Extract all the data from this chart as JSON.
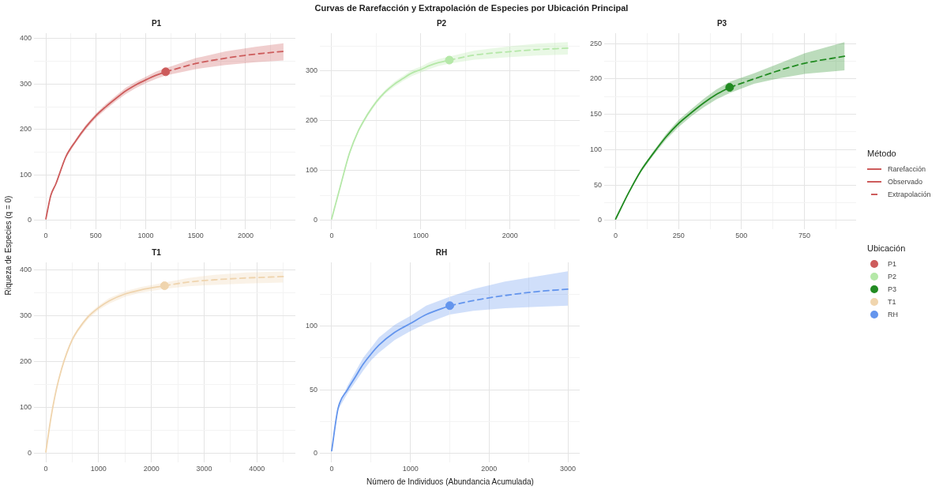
{
  "chart_data": [
    {
      "type": "line",
      "title": "P1",
      "legend": "right",
      "legend_title": "Método",
      "grid": true,
      "xlim": [
        -119,
        2499
      ],
      "xticks": [
        0,
        {
          "value": 250,
          "label": null
        },
        500,
        {
          "value": 750,
          "label": null
        },
        1000,
        {
          "value": 1250,
          "label": null
        },
        1500,
        {
          "value": 1750,
          "label": null
        },
        2000,
        {
          "value": 2250,
          "label": null
        }
      ],
      "ylim": [
        -20,
        412
      ],
      "yticks": [
        0,
        {
          "value": 50,
          "label": null
        },
        100,
        {
          "value": 150,
          "label": null
        },
        200,
        {
          "value": 250,
          "label": null
        },
        300,
        {
          "value": 350,
          "label": null
        },
        400
      ],
      "series": [
        {
          "name": "Rarefacción",
          "type": "line",
          "line_style": "solid",
          "color": "#cd5c5c",
          "x": [
            0,
            50,
            100,
            200,
            300,
            400,
            500,
            600,
            700,
            800,
            900,
            1000,
            1100,
            1200
          ],
          "values": [
            3,
            55,
            80,
            140,
            175,
            205,
            230,
            250,
            268,
            285,
            298,
            309,
            319,
            327
          ],
          "lower": [
            3,
            53,
            78,
            137,
            171,
            200,
            225,
            244,
            262,
            278,
            291,
            302,
            311,
            319
          ],
          "upper": [
            3,
            57,
            82,
            143,
            179,
            210,
            235,
            256,
            274,
            292,
            305,
            316,
            327,
            335
          ]
        },
        {
          "name": "Observado",
          "type": "scatter",
          "marker": "circle",
          "color": "#cd5c5c",
          "x": [
            1200
          ],
          "values": [
            327
          ]
        },
        {
          "name": "Extrapolación",
          "type": "line",
          "line_style": "dashed",
          "color": "#cd5c5c",
          "x": [
            1200,
            1500,
            1800,
            2100,
            2380
          ],
          "values": [
            327,
            345,
            357,
            366,
            372
          ],
          "lower": [
            319,
            333,
            342,
            348,
            352
          ],
          "upper": [
            335,
            357,
            372,
            382,
            390
          ]
        }
      ]
    },
    {
      "type": "line",
      "title": "P2",
      "grid": true,
      "xlim": [
        -132,
        2782
      ],
      "xticks": [
        0,
        {
          "value": 500,
          "label": null
        },
        1000,
        {
          "value": 1500,
          "label": null
        },
        2000,
        {
          "value": 2500,
          "label": null
        }
      ],
      "ylim": [
        -18,
        376
      ],
      "yticks": [
        0,
        {
          "value": 50,
          "label": null
        },
        100,
        {
          "value": 150,
          "label": null
        },
        200,
        {
          "value": 250,
          "label": null
        },
        300,
        {
          "value": 350,
          "label": null
        }
      ],
      "series": [
        {
          "type": "line",
          "line_style": "solid",
          "color": "#b5e8a8",
          "x": [
            0,
            100,
            200,
            300,
            400,
            500,
            600,
            700,
            800,
            900,
            1000,
            1100,
            1200,
            1320
          ],
          "values": [
            3,
            70,
            135,
            180,
            212,
            238,
            258,
            273,
            285,
            296,
            303,
            311,
            317,
            322
          ],
          "lower": [
            3,
            68,
            132,
            177,
            208,
            234,
            254,
            268,
            280,
            290,
            297,
            304,
            310,
            315
          ],
          "upper": [
            3,
            72,
            138,
            183,
            216,
            242,
            262,
            278,
            290,
            302,
            309,
            318,
            324,
            329
          ]
        },
        {
          "type": "scatter",
          "marker": "circle",
          "color": "#b5e8a8",
          "x": [
            1320
          ],
          "values": [
            322
          ]
        },
        {
          "type": "line",
          "line_style": "dashed",
          "color": "#b5e8a8",
          "x": [
            1320,
            1600,
            2000,
            2300,
            2650
          ],
          "values": [
            322,
            332,
            339,
            343,
            346
          ],
          "lower": [
            315,
            323,
            328,
            331,
            333
          ],
          "upper": [
            329,
            341,
            350,
            355,
            358
          ]
        }
      ]
    },
    {
      "type": "line",
      "title": "P3",
      "grid": true,
      "xlim": [
        -45.5,
        955.5
      ],
      "xticks": [
        0,
        {
          "value": 125,
          "label": null
        },
        250,
        {
          "value": 375,
          "label": null
        },
        500,
        {
          "value": 625,
          "label": null
        },
        750,
        {
          "value": 875,
          "label": null
        }
      ],
      "ylim": [
        -12.6,
        264.6
      ],
      "yticks": [
        0,
        {
          "value": 25,
          "label": null
        },
        50,
        {
          "value": 75,
          "label": null
        },
        100,
        {
          "value": 125,
          "label": null
        },
        150,
        {
          "value": 175,
          "label": null
        },
        200,
        {
          "value": 225,
          "label": null
        },
        250
      ],
      "series": [
        {
          "type": "line",
          "line_style": "solid",
          "color": "#228b22",
          "x": [
            0,
            50,
            100,
            150,
            200,
            250,
            300,
            350,
            400,
            453
          ],
          "values": [
            2,
            38,
            70,
            95,
            118,
            137,
            152,
            166,
            178,
            188
          ],
          "lower": [
            2,
            37,
            68,
            92,
            114,
            132,
            147,
            160,
            171,
            180
          ],
          "upper": [
            2,
            39,
            72,
            98,
            122,
            142,
            157,
            172,
            185,
            196
          ]
        },
        {
          "type": "scatter",
          "marker": "circle",
          "color": "#228b22",
          "x": [
            453
          ],
          "values": [
            188
          ]
        },
        {
          "type": "line",
          "line_style": "dashed",
          "color": "#228b22",
          "x": [
            453,
            550,
            650,
            750,
            910
          ],
          "values": [
            188,
            200,
            212,
            222,
            232
          ],
          "lower": [
            180,
            193,
            201,
            207,
            212
          ],
          "upper": [
            196,
            208,
            222,
            236,
            252
          ]
        }
      ]
    },
    {
      "type": "line",
      "title": "T1",
      "grid": true,
      "xlim": [
        -225,
        4730
      ],
      "xticks": [
        0,
        {
          "value": 500,
          "label": null
        },
        1000,
        {
          "value": 1500,
          "label": null
        },
        2000,
        {
          "value": 2500,
          "label": null
        },
        3000,
        {
          "value": 3500,
          "label": null
        },
        4000,
        {
          "value": 4500,
          "label": null
        }
      ],
      "ylim": [
        -20,
        417
      ],
      "yticks": [
        0,
        {
          "value": 50,
          "label": null
        },
        100,
        {
          "value": 150,
          "label": null
        },
        200,
        {
          "value": 250,
          "label": null
        },
        300,
        {
          "value": 350,
          "label": null
        },
        400
      ],
      "series": [
        {
          "type": "line",
          "line_style": "solid",
          "color": "#f0d5ae",
          "x": [
            0,
            100,
            200,
            300,
            400,
            500,
            600,
            800,
            1000,
            1200,
            1500,
            1800,
            2250
          ],
          "values": [
            3,
            80,
            140,
            185,
            220,
            248,
            268,
            298,
            318,
            333,
            348,
            357,
            366
          ],
          "lower": [
            3,
            78,
            137,
            182,
            216,
            244,
            264,
            293,
            313,
            327,
            342,
            351,
            359
          ],
          "upper": [
            3,
            82,
            143,
            188,
            224,
            252,
            272,
            303,
            323,
            339,
            354,
            363,
            373
          ]
        },
        {
          "type": "scatter",
          "marker": "circle",
          "color": "#f0d5ae",
          "x": [
            2250
          ],
          "values": [
            366
          ]
        },
        {
          "type": "line",
          "line_style": "dashed",
          "color": "#f0d5ae",
          "x": [
            2250,
            2700,
            3200,
            3800,
            4500
          ],
          "values": [
            366,
            374,
            379,
            383,
            386
          ],
          "lower": [
            359,
            365,
            368,
            371,
            373
          ],
          "upper": [
            373,
            383,
            390,
            395,
            397
          ]
        }
      ]
    },
    {
      "type": "line",
      "title": "RH",
      "grid": true,
      "xlim": [
        -150,
        3150
      ],
      "xticks": [
        0,
        {
          "value": 500,
          "label": null
        },
        1000,
        {
          "value": 1500,
          "label": null
        },
        2000,
        {
          "value": 2500,
          "label": null
        },
        3000
      ],
      "ylim": [
        -7.2,
        150
      ],
      "yticks": [
        0,
        {
          "value": 25,
          "label": null
        },
        50,
        {
          "value": 75,
          "label": null
        },
        100,
        {
          "value": 125,
          "label": null
        }
      ],
      "series": [
        {
          "type": "line",
          "line_style": "solid",
          "color": "#6495ed",
          "x": [
            0,
            80,
            200,
            300,
            400,
            500,
            600,
            800,
            1000,
            1200,
            1500
          ],
          "values": [
            2,
            35,
            50,
            60,
            70,
            78,
            85,
            95,
            102,
            109,
            116
          ],
          "lower": [
            2,
            34,
            47,
            56,
            65,
            73,
            79,
            89,
            96,
            102,
            109
          ],
          "upper": [
            2,
            36,
            53,
            64,
            75,
            83,
            91,
            101,
            108,
            116,
            123
          ]
        },
        {
          "type": "scatter",
          "marker": "circle",
          "color": "#6495ed",
          "x": [
            1500
          ],
          "values": [
            116
          ]
        },
        {
          "type": "line",
          "line_style": "dashed",
          "color": "#6495ed",
          "x": [
            1500,
            1800,
            2200,
            2600,
            3000
          ],
          "values": [
            116,
            120,
            124,
            127,
            129
          ],
          "lower": [
            109,
            112,
            114,
            115,
            116
          ],
          "upper": [
            123,
            129,
            135,
            139,
            143
          ]
        }
      ]
    },
    {
      "type": "other",
      "title": "Curvas de Rarefacción y Extrapolación de Especies por Ubicación Principal",
      "xlabel": "Número de Individuos (Abundancia Acumulada)",
      "ylabel": "Riqueza de Especies (q = 0)",
      "legend_title": "Ubicación",
      "categories": [
        "P1",
        "P2",
        "P3",
        "T1",
        "RH"
      ],
      "colors": [
        "#cd5c5c",
        "#b5e8a8",
        "#228b22",
        "#f0d5ae",
        "#6495ed"
      ]
    }
  ]
}
